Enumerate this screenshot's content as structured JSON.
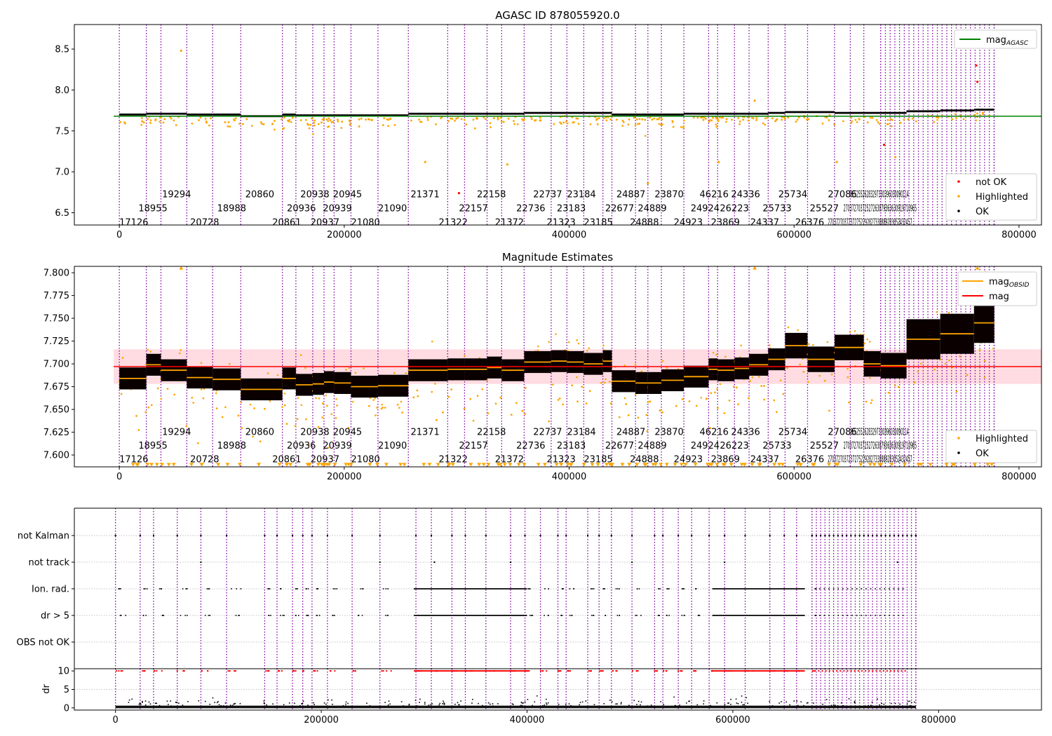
{
  "chart_data": [
    {
      "type": "scatter",
      "title": "AGASC ID 878055920.0",
      "xlim": [
        -40000,
        820000
      ],
      "ylim": [
        6.35,
        8.8
      ],
      "x_ticks": [
        0,
        200000,
        400000,
        600000,
        800000
      ],
      "y_ticks": [
        6.5,
        7.0,
        7.5,
        8.0,
        8.5
      ],
      "reference_line": {
        "name": "mag_AGASC",
        "value": 7.68,
        "color": "#008000"
      },
      "legend_top": [
        {
          "label": "mag",
          "sub": "AGASC",
          "color": "#008000",
          "kind": "line"
        }
      ],
      "legend_bottom": [
        {
          "label": "not OK",
          "color": "#ff0000",
          "kind": "dot"
        },
        {
          "label": "Highlighted",
          "color": "#ffa500",
          "kind": "dot"
        },
        {
          "label": "OK",
          "color": "#000000",
          "kind": "dot"
        }
      ],
      "annotation_rows": [
        6.73,
        6.56,
        6.39
      ],
      "segments": [
        [
          0,
          7.7
        ],
        [
          24000,
          7.71
        ],
        [
          37000,
          7.71
        ],
        [
          60000,
          7.7
        ],
        [
          83000,
          7.7
        ],
        [
          108000,
          7.68
        ],
        [
          145000,
          7.7
        ],
        [
          157000,
          7.69
        ],
        [
          172000,
          7.69
        ],
        [
          182000,
          7.69
        ],
        [
          191000,
          7.69
        ],
        [
          206000,
          7.69
        ],
        [
          230000,
          7.69
        ],
        [
          257000,
          7.71
        ],
        [
          292000,
          7.71
        ],
        [
          307000,
          7.71
        ],
        [
          327000,
          7.71
        ],
        [
          340000,
          7.71
        ],
        [
          360000,
          7.72
        ],
        [
          384000,
          7.72
        ],
        [
          398000,
          7.72
        ],
        [
          413000,
          7.72
        ],
        [
          430000,
          7.72
        ],
        [
          438000,
          7.7
        ],
        [
          459000,
          7.7
        ],
        [
          470000,
          7.7
        ],
        [
          482000,
          7.7
        ],
        [
          502000,
          7.71
        ],
        [
          524000,
          7.71
        ],
        [
          532000,
          7.71
        ],
        [
          547000,
          7.71
        ],
        [
          560000,
          7.71
        ],
        [
          577000,
          7.72
        ],
        [
          592000,
          7.73
        ],
        [
          612000,
          7.73
        ],
        [
          636000,
          7.72
        ],
        [
          662000,
          7.72
        ],
        [
          677000,
          7.72
        ],
        [
          700000,
          7.74
        ],
        [
          730000,
          7.75
        ],
        [
          760000,
          7.76
        ]
      ],
      "annotations": [
        {
          "x": 0,
          "row": 2,
          "text": "17126"
        },
        {
          "x": 17000,
          "row": 1,
          "text": "18955"
        },
        {
          "x": 38000,
          "row": 0,
          "text": "19294"
        },
        {
          "x": 63000,
          "row": 2,
          "text": "20728"
        },
        {
          "x": 87000,
          "row": 1,
          "text": "18988"
        },
        {
          "x": 112000,
          "row": 0,
          "text": "20860"
        },
        {
          "x": 136000,
          "row": 2,
          "text": "20861"
        },
        {
          "x": 149000,
          "row": 1,
          "text": "20936"
        },
        {
          "x": 161000,
          "row": 0,
          "text": "20938"
        },
        {
          "x": 170000,
          "row": 2,
          "text": "20937"
        },
        {
          "x": 181000,
          "row": 1,
          "text": "20939"
        },
        {
          "x": 190000,
          "row": 0,
          "text": "20945"
        },
        {
          "x": 206000,
          "row": 2,
          "text": "21080"
        },
        {
          "x": 230000,
          "row": 1,
          "text": "21090"
        },
        {
          "x": 259000,
          "row": 0,
          "text": "21371"
        },
        {
          "x": 284000,
          "row": 2,
          "text": "21322"
        },
        {
          "x": 302000,
          "row": 1,
          "text": "22157"
        },
        {
          "x": 318000,
          "row": 0,
          "text": "22158"
        },
        {
          "x": 334000,
          "row": 2,
          "text": "21372"
        },
        {
          "x": 353000,
          "row": 1,
          "text": "22736"
        },
        {
          "x": 368000,
          "row": 0,
          "text": "22737"
        },
        {
          "x": 380000,
          "row": 2,
          "text": "21323"
        },
        {
          "x": 389000,
          "row": 1,
          "text": "23183"
        },
        {
          "x": 398000,
          "row": 0,
          "text": "23184"
        },
        {
          "x": 413000,
          "row": 2,
          "text": "23185"
        },
        {
          "x": 432000,
          "row": 1,
          "text": "22677"
        },
        {
          "x": 442000,
          "row": 0,
          "text": "24887"
        },
        {
          "x": 454000,
          "row": 2,
          "text": "24888"
        },
        {
          "x": 461000,
          "row": 1,
          "text": "24889"
        },
        {
          "x": 476000,
          "row": 0,
          "text": "23870"
        },
        {
          "x": 493000,
          "row": 2,
          "text": "24923"
        },
        {
          "x": 508000,
          "row": 1,
          "text": "24924"
        },
        {
          "x": 516000,
          "row": 0,
          "text": "46216"
        },
        {
          "x": 526000,
          "row": 2,
          "text": "23869"
        },
        {
          "x": 534000,
          "row": 1,
          "text": "26223"
        },
        {
          "x": 544000,
          "row": 0,
          "text": "24336"
        },
        {
          "x": 561000,
          "row": 2,
          "text": "24337"
        },
        {
          "x": 572000,
          "row": 1,
          "text": "25733"
        },
        {
          "x": 586000,
          "row": 0,
          "text": "25734"
        },
        {
          "x": 601000,
          "row": 2,
          "text": "26376"
        },
        {
          "x": 614000,
          "row": 1,
          "text": "25527"
        },
        {
          "x": 630000,
          "row": 0,
          "text": "27086"
        }
      ],
      "dense_annotations": [
        {
          "x_start": 630000,
          "x_end": 705000,
          "row": 2,
          "text": "27037270372372752292827338889283052432457"
        },
        {
          "x_start": 644000,
          "row": 1,
          "x_end": 709000,
          "text": "27037270372527263879363630919710965"
        },
        {
          "x_start": 650000,
          "row": 0,
          "x_end": 702000,
          "text": "85525526283297330396030090114"
        }
      ]
    },
    {
      "type": "scatter",
      "title": "Magnitude Estimates",
      "xlim": [
        -40000,
        820000
      ],
      "ylim": [
        7.587,
        7.807
      ],
      "x_ticks": [
        0,
        200000,
        400000,
        600000,
        800000
      ],
      "y_ticks": [
        7.6,
        7.625,
        7.65,
        7.675,
        7.7,
        7.725,
        7.75,
        7.775,
        7.8
      ],
      "y_tick_labels": [
        "7.600",
        "7.625",
        "7.650",
        "7.675",
        "7.700",
        "7.725",
        "7.750",
        "7.775",
        "7.800"
      ],
      "reference_line": {
        "name": "mag",
        "value": 7.697,
        "color": "#ff0000"
      },
      "band": [
        7.678,
        7.716
      ],
      "legend_top": [
        {
          "label": "mag",
          "sub": "OBSID",
          "color": "#ffa500",
          "kind": "line"
        },
        {
          "label": "mag",
          "sub": "",
          "color": "#ff0000",
          "kind": "line"
        }
      ],
      "legend_bottom": [
        {
          "label": "Highlighted",
          "color": "#ffa500",
          "kind": "dot"
        },
        {
          "label": "OK",
          "color": "#000000",
          "kind": "dot"
        }
      ],
      "annotation_rows": [
        7.626,
        7.611,
        7.596
      ],
      "segments": [
        [
          0,
          7.684
        ],
        [
          24000,
          7.699
        ],
        [
          37000,
          7.693
        ],
        [
          60000,
          7.685
        ],
        [
          83000,
          7.683
        ],
        [
          108000,
          7.672
        ],
        [
          145000,
          7.684
        ],
        [
          157000,
          7.677
        ],
        [
          172000,
          7.678
        ],
        [
          182000,
          7.68
        ],
        [
          191000,
          7.679
        ],
        [
          206000,
          7.675
        ],
        [
          230000,
          7.676
        ],
        [
          257000,
          7.693
        ],
        [
          292000,
          7.694
        ],
        [
          307000,
          7.694
        ],
        [
          327000,
          7.696
        ],
        [
          340000,
          7.693
        ],
        [
          360000,
          7.702
        ],
        [
          384000,
          7.703
        ],
        [
          398000,
          7.702
        ],
        [
          413000,
          7.7
        ],
        [
          430000,
          7.703
        ],
        [
          438000,
          7.681
        ],
        [
          459000,
          7.679
        ],
        [
          470000,
          7.679
        ],
        [
          482000,
          7.682
        ],
        [
          502000,
          7.686
        ],
        [
          524000,
          7.694
        ],
        [
          532000,
          7.693
        ],
        [
          547000,
          7.695
        ],
        [
          560000,
          7.699
        ],
        [
          577000,
          7.705
        ],
        [
          592000,
          7.72
        ],
        [
          612000,
          7.705
        ],
        [
          636000,
          7.718
        ],
        [
          662000,
          7.7
        ],
        [
          677000,
          7.698
        ],
        [
          700000,
          7.727
        ],
        [
          730000,
          7.733
        ],
        [
          760000,
          7.745
        ]
      ],
      "annotations": [
        {
          "x": 0,
          "row": 2,
          "text": "17126"
        },
        {
          "x": 17000,
          "row": 1,
          "text": "18955"
        },
        {
          "x": 38000,
          "row": 0,
          "text": "19294"
        },
        {
          "x": 63000,
          "row": 2,
          "text": "20728"
        },
        {
          "x": 87000,
          "row": 1,
          "text": "18988"
        },
        {
          "x": 112000,
          "row": 0,
          "text": "20860"
        },
        {
          "x": 136000,
          "row": 2,
          "text": "20861"
        },
        {
          "x": 149000,
          "row": 1,
          "text": "20936"
        },
        {
          "x": 161000,
          "row": 0,
          "text": "20938"
        },
        {
          "x": 170000,
          "row": 2,
          "text": "20937"
        },
        {
          "x": 181000,
          "row": 1,
          "text": "20939"
        },
        {
          "x": 190000,
          "row": 0,
          "text": "20945"
        },
        {
          "x": 206000,
          "row": 2,
          "text": "21080"
        },
        {
          "x": 230000,
          "row": 1,
          "text": "21090"
        },
        {
          "x": 259000,
          "row": 0,
          "text": "21371"
        },
        {
          "x": 284000,
          "row": 2,
          "text": "21322"
        },
        {
          "x": 302000,
          "row": 1,
          "text": "22157"
        },
        {
          "x": 318000,
          "row": 0,
          "text": "22158"
        },
        {
          "x": 334000,
          "row": 2,
          "text": "21372"
        },
        {
          "x": 353000,
          "row": 1,
          "text": "22736"
        },
        {
          "x": 368000,
          "row": 0,
          "text": "22737"
        },
        {
          "x": 380000,
          "row": 2,
          "text": "21323"
        },
        {
          "x": 389000,
          "row": 1,
          "text": "23183"
        },
        {
          "x": 398000,
          "row": 0,
          "text": "23184"
        },
        {
          "x": 413000,
          "row": 2,
          "text": "23185"
        },
        {
          "x": 432000,
          "row": 1,
          "text": "22677"
        },
        {
          "x": 442000,
          "row": 0,
          "text": "24887"
        },
        {
          "x": 454000,
          "row": 2,
          "text": "24888"
        },
        {
          "x": 461000,
          "row": 1,
          "text": "24889"
        },
        {
          "x": 476000,
          "row": 0,
          "text": "23870"
        },
        {
          "x": 493000,
          "row": 2,
          "text": "24923"
        },
        {
          "x": 508000,
          "row": 1,
          "text": "24924"
        },
        {
          "x": 516000,
          "row": 0,
          "text": "46216"
        },
        {
          "x": 526000,
          "row": 2,
          "text": "23869"
        },
        {
          "x": 534000,
          "row": 1,
          "text": "26223"
        },
        {
          "x": 544000,
          "row": 0,
          "text": "24336"
        },
        {
          "x": 561000,
          "row": 2,
          "text": "24337"
        },
        {
          "x": 572000,
          "row": 1,
          "text": "25733"
        },
        {
          "x": 586000,
          "row": 0,
          "text": "25734"
        },
        {
          "x": 601000,
          "row": 2,
          "text": "26376"
        },
        {
          "x": 614000,
          "row": 1,
          "text": "25527"
        },
        {
          "x": 630000,
          "row": 0,
          "text": "27086"
        }
      ],
      "dense_annotations": [
        {
          "x_start": 630000,
          "x_end": 705000,
          "row": 2,
          "text": "27037270372372752292827338889283052432457"
        },
        {
          "x_start": 644000,
          "row": 1,
          "x_end": 709000,
          "text": "27037270372527263879363630919710965"
        },
        {
          "x_start": 650000,
          "row": 0,
          "x_end": 702000,
          "text": "85525526283297330396030090114"
        }
      ]
    },
    {
      "type": "scatter",
      "title": "",
      "xlim": [
        -40000,
        900000
      ],
      "categories": [
        "not Kalman",
        "not track",
        "Ion. rad.",
        "dr > 5",
        "OBS not OK"
      ],
      "x_ticks": [
        0,
        200000,
        400000,
        600000,
        800000
      ],
      "flag_dense_ranges": {
        "Ion. rad.": [
          [
            290000,
            400000
          ],
          [
            290000,
            400000
          ],
          [
            580000,
            670000
          ]
        ],
        "dr > 5": [
          [
            290000,
            400000
          ],
          [
            580000,
            670000
          ]
        ]
      },
      "not_track_points": [
        83000,
        257000,
        310000,
        384000,
        502000,
        592000,
        760000
      ]
    },
    {
      "type": "scatter",
      "title": "",
      "ylabel": "dr",
      "xlim": [
        -40000,
        900000
      ],
      "ylim": [
        -0.6,
        10.6
      ],
      "y_ticks": [
        0,
        5,
        10
      ],
      "x_ticks": [
        0,
        200000,
        400000,
        600000,
        800000
      ],
      "clip_value": 10
    }
  ],
  "obsid_starts": [
    0,
    24000,
    37000,
    60000,
    83000,
    108000,
    145000,
    157000,
    172000,
    182000,
    191000,
    206000,
    230000,
    257000,
    292000,
    307000,
    327000,
    340000,
    360000,
    384000,
    398000,
    413000,
    430000,
    438000,
    459000,
    470000,
    482000,
    502000,
    524000,
    532000,
    547000,
    560000,
    577000,
    592000,
    612000,
    636000,
    650000,
    662000,
    677000
  ],
  "dense_obsid_range": [
    677000,
    778000
  ],
  "x_end": 778000
}
